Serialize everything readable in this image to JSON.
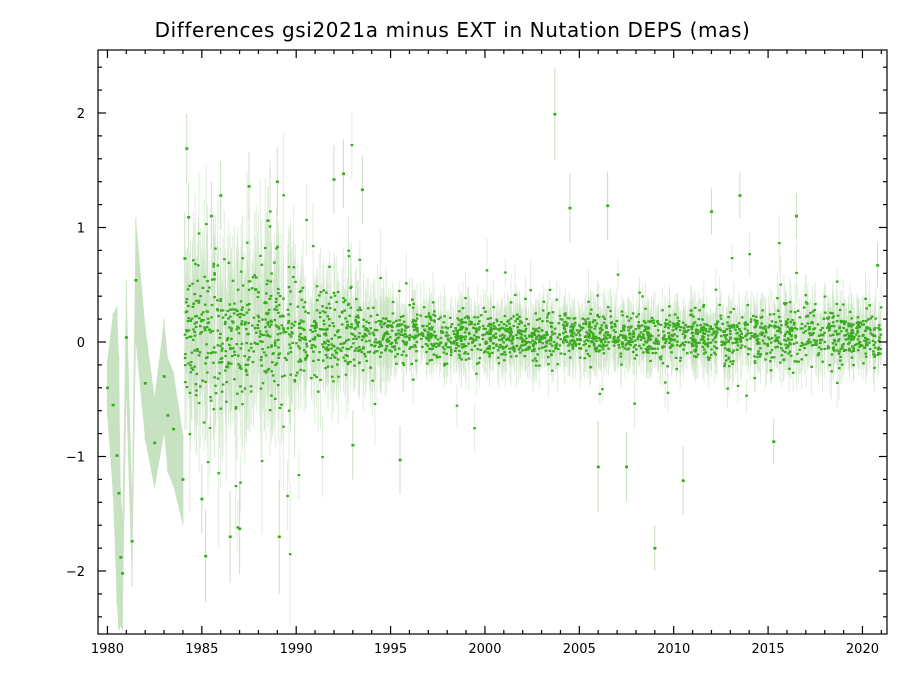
{
  "colors": {
    "point": "#3aaa1f",
    "error_band": "#c7e2c0",
    "axis": "#000000",
    "background": "#ffffff"
  },
  "chart_data": {
    "type": "scatter",
    "title": "Differences gsi2021a minus EXT in Nutation DEPS (mas)",
    "xlabel": "",
    "ylabel": "",
    "xlim": [
      1979.5,
      2021.3
    ],
    "ylim": [
      -2.55,
      2.55
    ],
    "grid": false,
    "legend": "none",
    "x_ticks": [
      1980,
      1985,
      1990,
      1995,
      2000,
      2005,
      2010,
      2015,
      2020
    ],
    "y_ticks": [
      -2,
      -1,
      0,
      1,
      2
    ],
    "x_tick_labels": [
      "1980",
      "1985",
      "1990",
      "1995",
      "2000",
      "2005",
      "2010",
      "2015",
      "2020"
    ],
    "y_tick_labels": [
      "−2",
      "−1",
      "0",
      "1",
      "2"
    ],
    "series": [
      {
        "points": [
          {
            "x": 1980.0,
            "y": -0.4,
            "err": 0.25
          },
          {
            "x": 1980.3,
            "y": -0.55,
            "err": 0.8
          },
          {
            "x": 1980.5,
            "y": -0.99,
            "err": 1.3
          },
          {
            "x": 1980.6,
            "y": -1.32,
            "err": 1.2
          },
          {
            "x": 1980.7,
            "y": -1.88,
            "err": 0.6
          },
          {
            "x": 1980.8,
            "y": -2.02,
            "err": 0.5
          },
          {
            "x": 1981.0,
            "y": 0.04,
            "err": 0.5
          },
          {
            "x": 1981.3,
            "y": -1.74,
            "err": 0.4
          },
          {
            "x": 1981.5,
            "y": 0.54,
            "err": 0.55
          },
          {
            "x": 1982.0,
            "y": -0.36,
            "err": 0.5
          },
          {
            "x": 1982.5,
            "y": -0.88,
            "err": 0.4
          },
          {
            "x": 1983.0,
            "y": -0.3,
            "err": 0.5
          },
          {
            "x": 1983.2,
            "y": -0.64,
            "err": 0.5
          },
          {
            "x": 1983.5,
            "y": -0.76,
            "err": 0.5
          },
          {
            "x": 1984.0,
            "y": -1.2,
            "err": 0.4
          },
          {
            "x": 1984.1,
            "y": 0.73,
            "err": 0.4
          },
          {
            "x": 1984.2,
            "y": 1.69,
            "err": 0.3
          },
          {
            "x": 1984.3,
            "y": 1.09,
            "err": 0.3
          },
          {
            "x": 1985.0,
            "y": -1.37,
            "err": 0.3
          },
          {
            "x": 1985.2,
            "y": -1.87,
            "err": 0.4
          },
          {
            "x": 1985.5,
            "y": 1.1,
            "err": 0.3
          },
          {
            "x": 1986.0,
            "y": 1.28,
            "err": 0.3
          },
          {
            "x": 1986.5,
            "y": -1.7,
            "err": 0.4
          },
          {
            "x": 1987.0,
            "y": -1.63,
            "err": 0.4
          },
          {
            "x": 1987.5,
            "y": 1.36,
            "err": 0.3
          },
          {
            "x": 1988.5,
            "y": 1.06,
            "err": 0.3
          },
          {
            "x": 1989.0,
            "y": 1.4,
            "err": 0.3
          },
          {
            "x": 1989.1,
            "y": -1.7,
            "err": 0.5
          },
          {
            "x": 1992.0,
            "y": 1.42,
            "err": 0.3
          },
          {
            "x": 1992.5,
            "y": 1.47,
            "err": 0.3
          },
          {
            "x": 1993.0,
            "y": -0.9,
            "err": 0.3
          },
          {
            "x": 1993.5,
            "y": 1.33,
            "err": 0.3
          },
          {
            "x": 1995.5,
            "y": -1.03,
            "err": 0.3
          },
          {
            "x": 2003.7,
            "y": 1.99,
            "err": 0.4
          },
          {
            "x": 2004.5,
            "y": 1.17,
            "err": 0.3
          },
          {
            "x": 2006.0,
            "y": -1.09,
            "err": 0.4
          },
          {
            "x": 2006.5,
            "y": 1.19,
            "err": 0.3
          },
          {
            "x": 2007.5,
            "y": -1.09,
            "err": 0.3
          },
          {
            "x": 2009.0,
            "y": -1.8,
            "err": 0.2
          },
          {
            "x": 2010.5,
            "y": -1.21,
            "err": 0.3
          },
          {
            "x": 2012.0,
            "y": 1.14,
            "err": 0.2
          },
          {
            "x": 2013.5,
            "y": 1.28,
            "err": 0.2
          },
          {
            "x": 2015.3,
            "y": -0.87,
            "err": 0.2
          },
          {
            "x": 2016.5,
            "y": 1.1,
            "err": 0.2
          },
          {
            "x": 2020.8,
            "y": 0.67,
            "err": 0.2
          }
        ]
      }
    ]
  }
}
